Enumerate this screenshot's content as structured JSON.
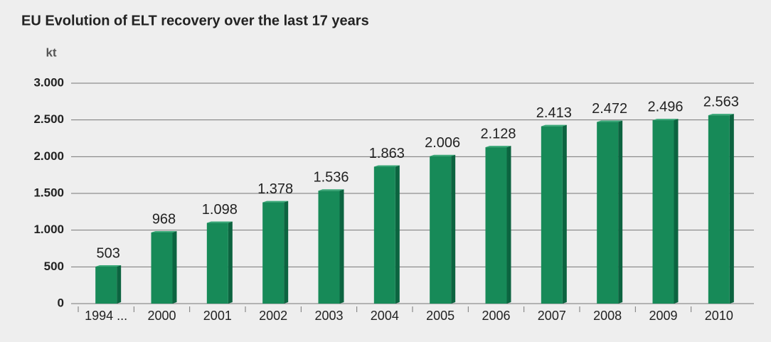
{
  "chart_data": {
    "type": "bar",
    "title": "EU Evolution of ELT recovery over the last 17 years",
    "y_label": "kt",
    "categories": [
      "1994 ...",
      "2000",
      "2001",
      "2002",
      "2003",
      "2004",
      "2005",
      "2006",
      "2007",
      "2008",
      "2009",
      "2010"
    ],
    "values": [
      503,
      968,
      1098,
      1378,
      1536,
      1863,
      2006,
      2128,
      2413,
      2472,
      2496,
      2563
    ],
    "value_labels": [
      "503",
      "968",
      "1.098",
      "1.378",
      "1.536",
      "1.863",
      "2.006",
      "2.128",
      "2.413",
      "2.472",
      "2.496",
      "2.563"
    ],
    "color": "#178a58",
    "ylim": [
      0,
      3000
    ],
    "yticks": [
      0,
      500,
      {
        "value": 1000,
        "label": "1.000"
      },
      {
        "value": 1500,
        "label": "1.500"
      },
      {
        "value": 2000,
        "label": "2.000"
      },
      {
        "value": 2500,
        "label": "2.500"
      },
      {
        "value": 3000,
        "label": "3.000"
      }
    ],
    "grid": true
  }
}
